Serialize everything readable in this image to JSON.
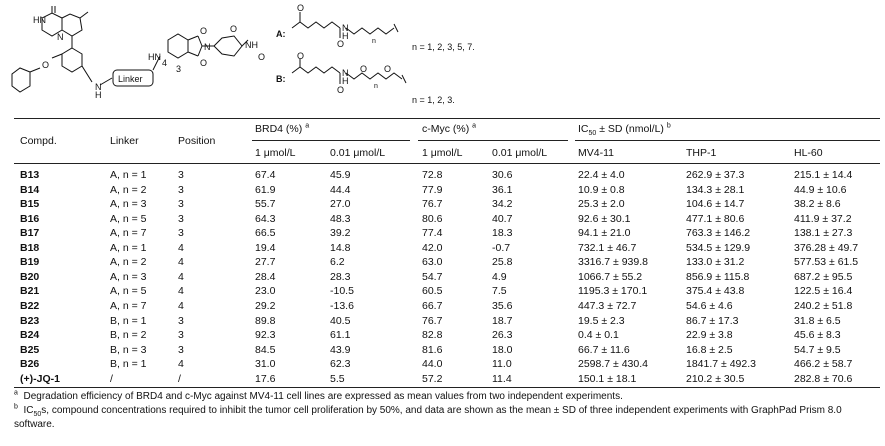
{
  "scheme": {
    "hn_left": "HN",
    "n_left": "N",
    "o_left": "O",
    "nh_right": "N",
    "h_right": "H",
    "linker_label": "Linker",
    "hn_mid": "HN",
    "pos4": "4",
    "pos3": "3",
    "o_top": "O",
    "o_bot": "O",
    "nh_imide": "NH",
    "o_imide1": "O",
    "o_imide2": "O",
    "n_ring": "N",
    "label_a": "A:",
    "label_b": "B:",
    "a_o1": "O",
    "a_o2": "O",
    "a_n": "N",
    "a_h": "H",
    "a_sub": "n",
    "a_range": "n = 1, 2, 3, 5, 7.",
    "b_o1": "O",
    "b_o2": "O",
    "b_n": "N",
    "b_h": "H",
    "b_o3": "O",
    "b_o4": "O",
    "b_sub": "n",
    "b_range": "n = 1, 2, 3."
  },
  "table": {
    "headers": {
      "compd": "Compd.",
      "linker": "Linker",
      "position": "Position",
      "brd4": "BRD4 (%)",
      "brd4_sup": "a",
      "cmyc": "c-Myc (%)",
      "cmyc_sup": "a",
      "ic50_pre": "IC",
      "ic50_sub": "50",
      "ic50_post": " ± SD (nmol/L)",
      "ic50_sup": "b",
      "sub_1um_a": "1 μmol/L",
      "sub_001um_a": "0.01 μmol/L",
      "sub_1um_b": "1 μmol/L",
      "sub_001um_b": "0.01 μmol/L",
      "mv411": "MV4-11",
      "thp1": "THP-1",
      "hl60": "HL-60"
    },
    "rows": [
      {
        "compd": "B13",
        "linker": "A, n = 1",
        "position": "3",
        "brd4_1": "67.4",
        "brd4_001": "45.9",
        "cmyc_1": "72.8",
        "cmyc_001": "30.6",
        "mv411": "22.4 ± 4.0",
        "thp1": "262.9 ± 37.3",
        "hl60": "215.1 ± 14.4"
      },
      {
        "compd": "B14",
        "linker": "A, n = 2",
        "position": "3",
        "brd4_1": "61.9",
        "brd4_001": "44.4",
        "cmyc_1": "77.9",
        "cmyc_001": "36.1",
        "mv411": "10.9 ± 0.8",
        "thp1": "134.3 ± 28.1",
        "hl60": "44.9 ± 10.6"
      },
      {
        "compd": "B15",
        "linker": "A, n = 3",
        "position": "3",
        "brd4_1": "55.7",
        "brd4_001": "27.0",
        "cmyc_1": "76.7",
        "cmyc_001": "34.2",
        "mv411": "25.3 ± 2.0",
        "thp1": "104.6 ± 14.7",
        "hl60": "38.2 ± 8.6"
      },
      {
        "compd": "B16",
        "linker": "A, n = 5",
        "position": "3",
        "brd4_1": "64.3",
        "brd4_001": "48.3",
        "cmyc_1": "80.6",
        "cmyc_001": "40.7",
        "mv411": "92.6 ± 30.1",
        "thp1": "477.1 ± 80.6",
        "hl60": "411.9 ± 37.2"
      },
      {
        "compd": "B17",
        "linker": "A, n = 7",
        "position": "3",
        "brd4_1": "66.5",
        "brd4_001": "39.2",
        "cmyc_1": "77.4",
        "cmyc_001": "18.3",
        "mv411": "94.1 ± 21.0",
        "thp1": "763.3 ± 146.2",
        "hl60": "138.1 ± 27.3"
      },
      {
        "compd": "B18",
        "linker": "A, n = 1",
        "position": "4",
        "brd4_1": "19.4",
        "brd4_001": "14.8",
        "cmyc_1": "42.0",
        "cmyc_001": "-0.7",
        "mv411": "732.1 ± 46.7",
        "thp1": "534.5 ± 129.9",
        "hl60": "376.28 ± 49.7"
      },
      {
        "compd": "B19",
        "linker": "A, n = 2",
        "position": "4",
        "brd4_1": "27.7",
        "brd4_001": "6.2",
        "cmyc_1": "63.0",
        "cmyc_001": "25.8",
        "mv411": "3316.7 ± 939.8",
        "thp1": "133.0 ± 31.2",
        "hl60": "577.53 ± 61.5"
      },
      {
        "compd": "B20",
        "linker": "A, n = 3",
        "position": "4",
        "brd4_1": "28.4",
        "brd4_001": "28.3",
        "cmyc_1": "54.7",
        "cmyc_001": "4.9",
        "mv411": "1066.7 ± 55.2",
        "thp1": "856.9 ± 115.8",
        "hl60": "687.2 ± 95.5"
      },
      {
        "compd": "B21",
        "linker": "A, n = 5",
        "position": "4",
        "brd4_1": "23.0",
        "brd4_001": "-10.5",
        "cmyc_1": "60.5",
        "cmyc_001": "7.5",
        "mv411": "1195.3 ± 170.1",
        "thp1": "375.4 ± 43.8",
        "hl60": "122.5 ± 16.4"
      },
      {
        "compd": "B22",
        "linker": "A, n = 7",
        "position": "4",
        "brd4_1": "29.2",
        "brd4_001": "-13.6",
        "cmyc_1": "66.7",
        "cmyc_001": "35.6",
        "mv411": "447.3 ± 72.7",
        "thp1": "54.6 ± 4.6",
        "hl60": "240.2 ± 51.8"
      },
      {
        "compd": "B23",
        "linker": "B, n = 1",
        "position": "3",
        "brd4_1": "89.8",
        "brd4_001": "40.5",
        "cmyc_1": "76.7",
        "cmyc_001": "18.7",
        "mv411": "19.5 ± 2.3",
        "thp1": "86.7 ± 17.3",
        "hl60": "31.8 ± 6.5"
      },
      {
        "compd": "B24",
        "linker": "B, n = 2",
        "position": "3",
        "brd4_1": "92.3",
        "brd4_001": "61.1",
        "cmyc_1": "82.8",
        "cmyc_001": "26.3",
        "mv411": "0.4 ± 0.1",
        "thp1": "22.9 ± 3.8",
        "hl60": "45.6 ± 8.3"
      },
      {
        "compd": "B25",
        "linker": "B, n = 3",
        "position": "3",
        "brd4_1": "84.5",
        "brd4_001": "43.9",
        "cmyc_1": "81.6",
        "cmyc_001": "18.0",
        "mv411": "66.7 ± 11.6",
        "thp1": "16.8 ± 2.5",
        "hl60": "54.7 ± 9.5"
      },
      {
        "compd": "B26",
        "linker": "B, n = 1",
        "position": "4",
        "brd4_1": "31.0",
        "brd4_001": "62.3",
        "cmyc_1": "44.0",
        "cmyc_001": "11.0",
        "mv411": "2598.7 ± 430.4",
        "thp1": "1841.7 ± 492.3",
        "hl60": "466.2 ± 58.7"
      },
      {
        "compd": "(+)-JQ-1",
        "linker": "/",
        "position": "/",
        "brd4_1": "17.6",
        "brd4_001": "5.5",
        "cmyc_1": "57.2",
        "cmyc_001": "11.4",
        "mv411": "150.1 ± 18.1",
        "thp1": "210.2 ± 30.5",
        "hl60": "282.8 ± 70.6"
      }
    ]
  },
  "footnotes": {
    "a_mark": "a",
    "a_text": "Degradation efficiency of BRD4 and c-Myc against MV4-11 cell lines are expressed as mean values from two independent experiments.",
    "b_mark": "b",
    "b_pre": "IC",
    "b_sub": "50",
    "b_text": "s, compound concentrations required to inhibit the tumor cell proliferation by 50%, and data are shown as the mean ± SD of three independent experiments with GraphPad Prism 8.0 software."
  }
}
